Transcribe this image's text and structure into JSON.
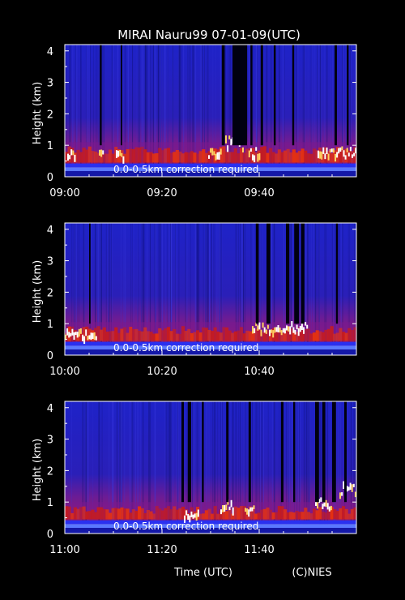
{
  "title": "MIRAI Nauru99 07-01-09(UTC)",
  "footer": {
    "xlabel": "Time (UTC)",
    "credit": "(C)NIES"
  },
  "colors": {
    "background": "#000000",
    "sky": "#1c1fc4",
    "boundary_layer": "#7a1a8f",
    "aerosol": "#e8320c",
    "cloud": "#ffffff",
    "axis": "#ffffff"
  },
  "chart_data": [
    {
      "type": "heatmap",
      "ylabel": "Height (km)",
      "yticks": [
        "0",
        "1",
        "2",
        "3",
        "4"
      ],
      "ylim": [
        0,
        4.2
      ],
      "xlim_minutes": [
        0,
        60
      ],
      "xticks": [
        {
          "label": "09:00",
          "minute": 0
        },
        {
          "label": "09:20",
          "minute": 20
        },
        {
          "label": "09:40",
          "minute": 40
        }
      ],
      "annotation": "0.0-0.5km correction required",
      "layer_top_km": 0.85,
      "dropouts": [
        [
          7.2,
          7.6
        ],
        [
          11.5,
          11.8
        ],
        [
          32.3,
          32.9
        ],
        [
          34.5,
          37.5
        ],
        [
          38.2,
          38.6
        ],
        [
          40.3,
          40.8
        ],
        [
          43.0,
          43.4
        ],
        [
          46.8,
          47.2
        ],
        [
          55.5,
          56.0
        ],
        [
          58.0,
          58.4
        ]
      ],
      "cloud_returns": [
        [
          0.5,
          2.0,
          0.8
        ],
        [
          7.0,
          8.0,
          0.8
        ],
        [
          10.5,
          12.0,
          0.75
        ],
        [
          29.5,
          32.0,
          0.8
        ],
        [
          33.0,
          36.8,
          1.15
        ],
        [
          37.8,
          40.0,
          0.85
        ],
        [
          52.0,
          60.0,
          0.85
        ]
      ]
    },
    {
      "type": "heatmap",
      "ylabel": "Height (km)",
      "yticks": [
        "0",
        "1",
        "2",
        "3",
        "4"
      ],
      "ylim": [
        0,
        4.2
      ],
      "xlim_minutes": [
        0,
        60
      ],
      "xticks": [
        {
          "label": "10:00",
          "minute": 0
        },
        {
          "label": "10:20",
          "minute": 20
        },
        {
          "label": "10:40",
          "minute": 40
        }
      ],
      "annotation": "0.0-0.5km correction required",
      "layer_top_km": 0.8,
      "dropouts": [
        [
          5.0,
          5.3
        ],
        [
          39.3,
          39.9
        ],
        [
          41.5,
          42.3
        ],
        [
          45.5,
          46.2
        ],
        [
          47.2,
          48.2
        ],
        [
          48.6,
          49.3
        ],
        [
          55.8,
          56.2
        ]
      ],
      "cloud_returns": [
        [
          0.0,
          6.5,
          0.75
        ],
        [
          38.5,
          50.0,
          0.95
        ]
      ]
    },
    {
      "type": "heatmap",
      "ylabel": "Height (km)",
      "yticks": [
        "0",
        "1",
        "2",
        "3",
        "4"
      ],
      "ylim": [
        0,
        4.2
      ],
      "xlim_minutes": [
        0,
        60
      ],
      "xticks": [
        {
          "label": "11:00",
          "minute": 0
        },
        {
          "label": "11:20",
          "minute": 20
        },
        {
          "label": "11:40",
          "minute": 40
        }
      ],
      "annotation": "0.0-0.5km correction required",
      "layer_top_km": 0.75,
      "dropouts": [
        [
          24.0,
          24.5
        ],
        [
          25.3,
          26.0
        ],
        [
          28.2,
          28.6
        ],
        [
          33.2,
          33.7
        ],
        [
          37.8,
          38.3
        ],
        [
          44.5,
          45.0
        ],
        [
          47.0,
          47.4
        ],
        [
          51.5,
          52.3
        ],
        [
          53.0,
          53.6
        ],
        [
          55.0,
          55.8
        ],
        [
          57.5,
          58.0
        ]
      ],
      "cloud_returns": [
        [
          24.5,
          27.5,
          0.7
        ],
        [
          32.0,
          34.5,
          0.95
        ],
        [
          37.0,
          39.0,
          0.8
        ],
        [
          51.5,
          55.0,
          1.0
        ],
        [
          56.5,
          60.0,
          1.6
        ]
      ]
    }
  ]
}
